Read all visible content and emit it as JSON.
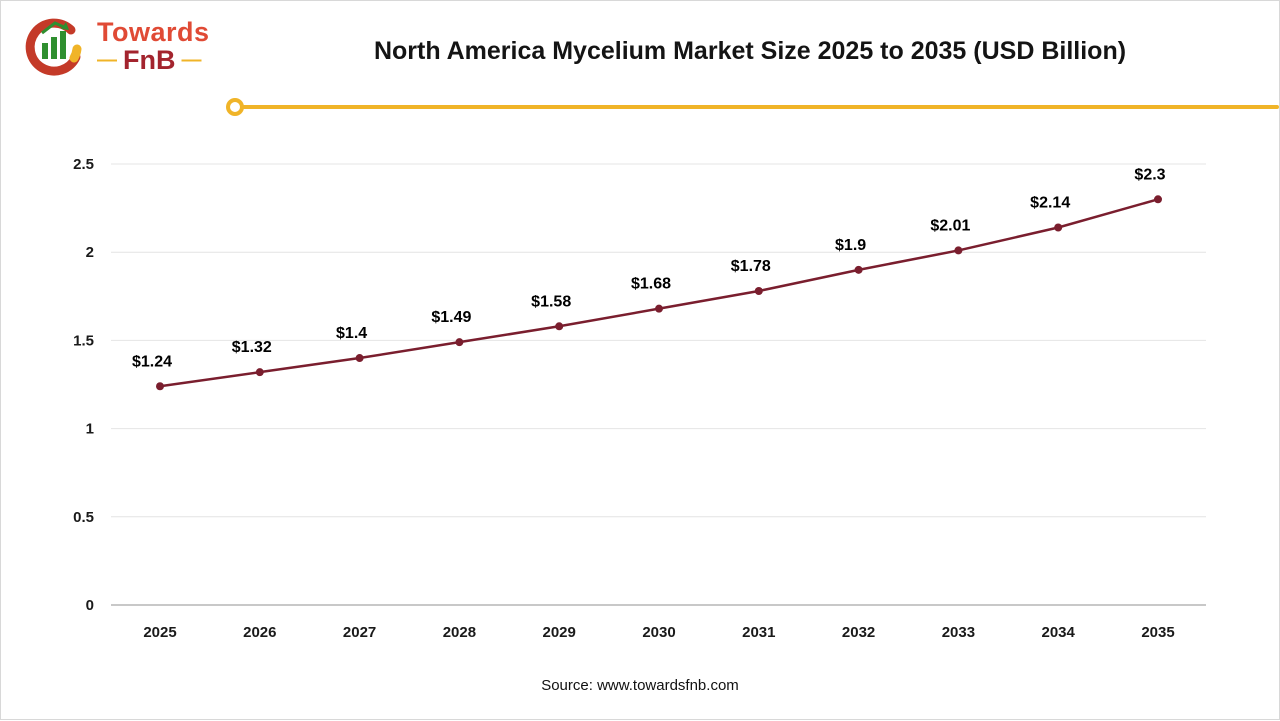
{
  "page": {
    "title": "North America Mycelium Market Size 2025 to 2035 (USD Billion)",
    "source": "Source: www.towardsfnb.com"
  },
  "logo": {
    "name_top": "Towards",
    "name_bottom": "FnB",
    "dash": "—",
    "icon": "bar-chart-circle-icon",
    "colors": {
      "top_text": "#e04a35",
      "bottom_text": "#a3242e",
      "accent": "#f0b428"
    }
  },
  "chart_data": {
    "type": "line",
    "title": "North America Mycelium Market Size 2025 to 2035 (USD Billion)",
    "categories": [
      "2025",
      "2026",
      "2027",
      "2028",
      "2029",
      "2030",
      "2031",
      "2032",
      "2033",
      "2034",
      "2035"
    ],
    "values": [
      1.24,
      1.32,
      1.4,
      1.49,
      1.58,
      1.68,
      1.78,
      1.9,
      2.01,
      2.14,
      2.3
    ],
    "labels": [
      "$1.24",
      "$1.32",
      "$1.4",
      "$1.49",
      "$1.58",
      "$1.68",
      "$1.78",
      "$1.9",
      "$2.01",
      "$2.14",
      "$2.3"
    ],
    "xlabel": "",
    "ylabel": "",
    "ylim": [
      0,
      2.5
    ],
    "yticks": [
      0,
      0.5,
      1,
      1.5,
      2,
      2.5
    ],
    "grid": true,
    "legend": "none",
    "line_color": "#7a1e2e",
    "accent_color": "#f0b428"
  }
}
